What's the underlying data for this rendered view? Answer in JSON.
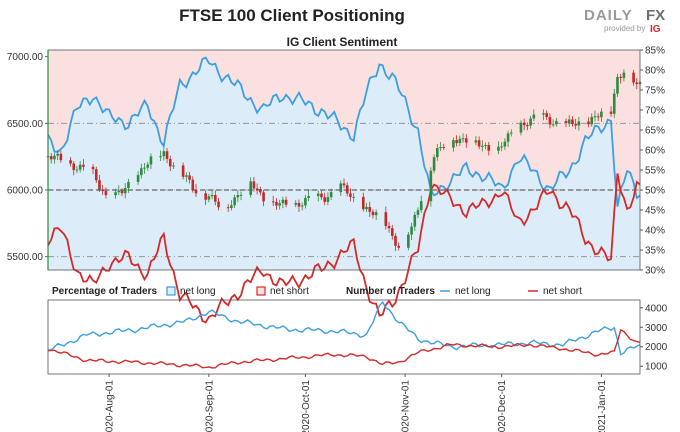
{
  "title": "FTSE 100 Client Positioning",
  "logo": {
    "brand": "DAILY",
    "brand_fx": "FX",
    "provided_by": "provided by",
    "partner": "IG"
  },
  "colors": {
    "net_long": "#3d9ee0",
    "net_short": "#d42a2a",
    "up_candle": "#2e8b3e",
    "down_candle": "#c62828",
    "long_fill": "#dcecf8",
    "short_fill": "#fbe0e0",
    "price_axis": "#2e8b3e"
  },
  "chart_data": [
    {
      "type": "candlestick",
      "title": "IG Client Sentiment",
      "y_left": {
        "ticks": [
          "7000.00",
          "6500.00",
          "6000.00",
          "5500.00"
        ],
        "range": [
          5400,
          7050
        ]
      },
      "y_right": {
        "ticks": [
          "85%",
          "80%",
          "75%",
          "70%",
          "65%",
          "60%",
          "55%",
          "50%",
          "45%",
          "40%",
          "35%",
          "30%"
        ],
        "range": [
          30,
          85
        ]
      },
      "reference_lines": {
        "price": [
          6500,
          6000,
          5500
        ],
        "sentiment_pct": [
          50
        ]
      },
      "x_ticks": [
        "2020-Aug-01",
        "2020-Sep-01",
        "2020-Oct-01",
        "2020-Nov-01",
        "2020-Dec-01",
        "2021-Jan-01"
      ],
      "x_range": [
        "2020-07-13",
        "2021-01-13"
      ],
      "price_keypoints": [
        [
          "2020-07-13",
          6250
        ],
        [
          "2020-07-20",
          6200
        ],
        [
          "2020-07-27",
          6120
        ],
        [
          "2020-08-01",
          5920
        ],
        [
          "2020-08-05",
          5980
        ],
        [
          "2020-08-12",
          6180
        ],
        [
          "2020-08-18",
          6280
        ],
        [
          "2020-08-24",
          6100
        ],
        [
          "2020-08-28",
          6000
        ],
        [
          "2020-09-01",
          5950
        ],
        [
          "2020-09-05",
          5850
        ],
        [
          "2020-09-08",
          5920
        ],
        [
          "2020-09-14",
          6050
        ],
        [
          "2020-09-20",
          5900
        ],
        [
          "2020-09-25",
          5880
        ],
        [
          "2020-10-01",
          5920
        ],
        [
          "2020-10-07",
          5950
        ],
        [
          "2020-10-12",
          6020
        ],
        [
          "2020-10-16",
          5930
        ],
        [
          "2020-10-22",
          5820
        ],
        [
          "2020-10-26",
          5750
        ],
        [
          "2020-10-30",
          5580
        ],
        [
          "2020-11-03",
          5700
        ],
        [
          "2020-11-06",
          5950
        ],
        [
          "2020-11-10",
          6250
        ],
        [
          "2020-11-16",
          6400
        ],
        [
          "2020-11-23",
          6350
        ],
        [
          "2020-11-30",
          6300
        ],
        [
          "2020-12-07",
          6500
        ],
        [
          "2020-12-14",
          6550
        ],
        [
          "2020-12-21",
          6480
        ],
        [
          "2020-12-28",
          6520
        ],
        [
          "2021-01-04",
          6600
        ],
        [
          "2021-01-06",
          6850
        ],
        [
          "2021-01-08",
          6900
        ],
        [
          "2021-01-12",
          6780
        ]
      ],
      "net_long_pct_keypoints": [
        [
          "2020-07-13",
          62
        ],
        [
          "2020-07-17",
          60
        ],
        [
          "2020-07-22",
          70
        ],
        [
          "2020-07-27",
          74
        ],
        [
          "2020-08-01",
          68
        ],
        [
          "2020-08-07",
          67
        ],
        [
          "2020-08-13",
          71
        ],
        [
          "2020-08-18",
          62
        ],
        [
          "2020-08-23",
          76
        ],
        [
          "2020-08-28",
          80
        ],
        [
          "2020-09-01",
          82
        ],
        [
          "2020-09-07",
          78
        ],
        [
          "2020-09-12",
          74
        ],
        [
          "2020-09-18",
          70
        ],
        [
          "2020-09-24",
          74
        ],
        [
          "2020-09-30",
          72
        ],
        [
          "2020-10-06",
          70
        ],
        [
          "2020-10-12",
          66
        ],
        [
          "2020-10-16",
          64
        ],
        [
          "2020-10-20",
          74
        ],
        [
          "2020-10-24",
          82
        ],
        [
          "2020-10-28",
          78
        ],
        [
          "2020-11-01",
          72
        ],
        [
          "2020-11-05",
          65
        ],
        [
          "2020-11-09",
          48
        ],
        [
          "2020-11-14",
          52
        ],
        [
          "2020-11-20",
          55
        ],
        [
          "2020-11-25",
          54
        ],
        [
          "2020-12-01",
          50
        ],
        [
          "2020-12-06",
          58
        ],
        [
          "2020-12-12",
          54
        ],
        [
          "2020-12-16",
          50
        ],
        [
          "2020-12-22",
          55
        ],
        [
          "2020-12-27",
          62
        ],
        [
          "2021-01-01",
          66
        ],
        [
          "2021-01-04",
          68
        ],
        [
          "2021-01-06",
          45
        ],
        [
          "2021-01-09",
          55
        ],
        [
          "2021-01-12",
          50
        ]
      ],
      "net_short_pct_keypoints": [
        [
          "2020-07-13",
          38
        ],
        [
          "2020-07-17",
          40
        ],
        [
          "2020-07-22",
          30
        ],
        [
          "2020-07-27",
          26
        ],
        [
          "2020-08-01",
          32
        ],
        [
          "2020-08-07",
          33
        ],
        [
          "2020-08-13",
          29
        ],
        [
          "2020-08-18",
          38
        ],
        [
          "2020-08-23",
          24
        ],
        [
          "2020-08-28",
          20
        ],
        [
          "2020-09-01",
          18
        ],
        [
          "2020-09-07",
          22
        ],
        [
          "2020-09-12",
          26
        ],
        [
          "2020-09-18",
          30
        ],
        [
          "2020-09-24",
          26
        ],
        [
          "2020-09-30",
          28
        ],
        [
          "2020-10-06",
          30
        ],
        [
          "2020-10-12",
          34
        ],
        [
          "2020-10-16",
          36
        ],
        [
          "2020-10-20",
          26
        ],
        [
          "2020-10-24",
          18
        ],
        [
          "2020-10-28",
          22
        ],
        [
          "2020-11-01",
          28
        ],
        [
          "2020-11-05",
          35
        ],
        [
          "2020-11-09",
          52
        ],
        [
          "2020-11-14",
          48
        ],
        [
          "2020-11-20",
          45
        ],
        [
          "2020-11-25",
          46
        ],
        [
          "2020-12-01",
          50
        ],
        [
          "2020-12-06",
          42
        ],
        [
          "2020-12-12",
          46
        ],
        [
          "2020-12-16",
          50
        ],
        [
          "2020-12-22",
          45
        ],
        [
          "2020-12-27",
          38
        ],
        [
          "2021-01-01",
          34
        ],
        [
          "2021-01-04",
          32
        ],
        [
          "2021-01-06",
          55
        ],
        [
          "2021-01-09",
          45
        ],
        [
          "2021-01-12",
          50
        ]
      ]
    },
    {
      "type": "line",
      "legend": {
        "percentage_label": "Percentage of Traders",
        "percentage_items": [
          "net long",
          "net short"
        ],
        "number_label": "Number of Traders",
        "number_items": [
          "net long",
          "net short"
        ]
      },
      "y_right": {
        "ticks": [
          "4000",
          "3000",
          "2000",
          "1000"
        ],
        "range": [
          600,
          4400
        ]
      },
      "x_ticks": [
        "2020-Aug-01",
        "2020-Sep-01",
        "2020-Oct-01",
        "2020-Nov-01",
        "2020-Dec-01",
        "2021-Jan-01"
      ],
      "x_range": [
        "2020-07-13",
        "2021-01-13"
      ],
      "net_long_count_keypoints": [
        [
          "2020-07-13",
          1800
        ],
        [
          "2020-07-25",
          2600
        ],
        [
          "2020-08-10",
          2900
        ],
        [
          "2020-08-25",
          3300
        ],
        [
          "2020-09-01",
          3800
        ],
        [
          "2020-09-10",
          3300
        ],
        [
          "2020-09-25",
          2900
        ],
        [
          "2020-10-10",
          2800
        ],
        [
          "2020-10-20",
          2600
        ],
        [
          "2020-10-25",
          4300
        ],
        [
          "2020-10-30",
          3300
        ],
        [
          "2020-11-05",
          2400
        ],
        [
          "2020-11-15",
          2000
        ],
        [
          "2020-11-30",
          2100
        ],
        [
          "2020-12-10",
          2200
        ],
        [
          "2020-12-20",
          2100
        ],
        [
          "2020-12-31",
          2800
        ],
        [
          "2021-01-05",
          3000
        ],
        [
          "2021-01-07",
          1700
        ],
        [
          "2021-01-12",
          2000
        ]
      ],
      "net_short_count_keypoints": [
        [
          "2020-07-13",
          1900
        ],
        [
          "2020-07-25",
          1300
        ],
        [
          "2020-08-10",
          1200
        ],
        [
          "2020-08-25",
          1050
        ],
        [
          "2020-09-01",
          950
        ],
        [
          "2020-09-10",
          1200
        ],
        [
          "2020-09-25",
          1400
        ],
        [
          "2020-10-10",
          1600
        ],
        [
          "2020-10-20",
          1500
        ],
        [
          "2020-10-25",
          1100
        ],
        [
          "2020-10-30",
          1200
        ],
        [
          "2020-11-05",
          1700
        ],
        [
          "2020-11-15",
          2100
        ],
        [
          "2020-11-30",
          2000
        ],
        [
          "2020-12-10",
          2100
        ],
        [
          "2020-12-20",
          1900
        ],
        [
          "2020-12-31",
          1600
        ],
        [
          "2021-01-05",
          1700
        ],
        [
          "2021-01-07",
          2900
        ],
        [
          "2021-01-12",
          2200
        ]
      ]
    }
  ]
}
